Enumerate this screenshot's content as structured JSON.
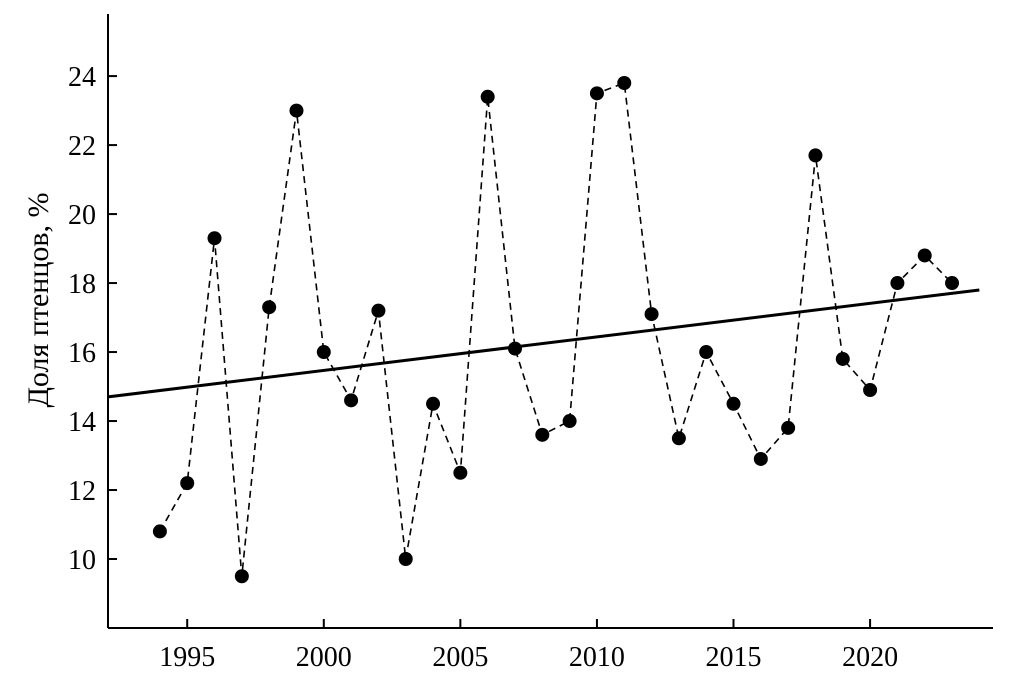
{
  "chart_data": {
    "type": "line",
    "title": "",
    "xlabel": "",
    "ylabel": "Доля птенцов, %",
    "xlim": [
      1992.1,
      2024.5
    ],
    "ylim": [
      8.0,
      25.8
    ],
    "xticks": [
      1995,
      2000,
      2005,
      2010,
      2015,
      2020
    ],
    "yticks": [
      10,
      12,
      14,
      16,
      18,
      20,
      22,
      24
    ],
    "grid": false,
    "legend": "none",
    "series": [
      {
        "style": "dashed line with filled circle markers",
        "color": "#000000",
        "x": [
          1994,
          1995,
          1996,
          1997,
          1998,
          1999,
          2000,
          2001,
          2002,
          2003,
          2004,
          2005,
          2006,
          2007,
          2008,
          2009,
          2010,
          2011,
          2012,
          2013,
          2014,
          2015,
          2016,
          2017,
          2018,
          2019,
          2020,
          2021,
          2022,
          2023
        ],
        "y": [
          10.8,
          12.2,
          19.3,
          9.5,
          17.3,
          23.0,
          16.0,
          14.6,
          17.2,
          10.0,
          14.5,
          12.5,
          23.4,
          16.1,
          13.6,
          14.0,
          23.5,
          23.8,
          17.1,
          13.5,
          16.0,
          14.5,
          12.9,
          13.8,
          21.7,
          15.8,
          14.9,
          18.0,
          18.8,
          18.0
        ]
      },
      {
        "style": "solid trend line",
        "color": "#000000",
        "x": [
          1992.1,
          2024.0
        ],
        "y": [
          14.7,
          17.8
        ]
      }
    ]
  }
}
